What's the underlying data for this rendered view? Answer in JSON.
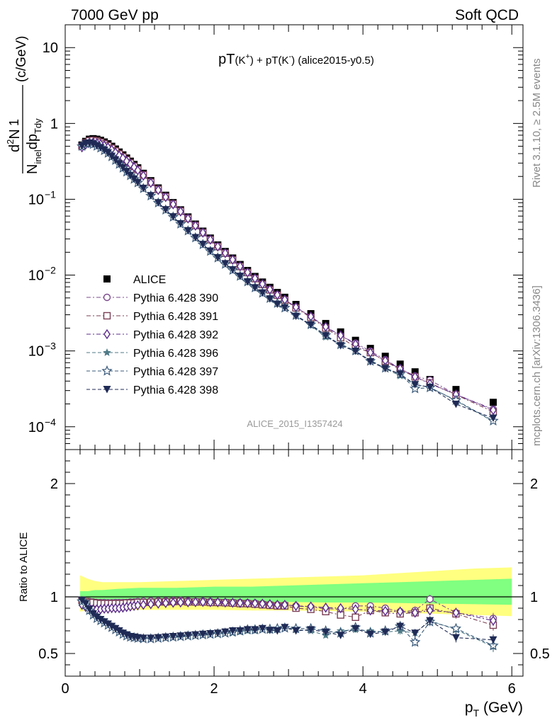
{
  "header": {
    "left": "7000 GeV pp",
    "right": "Soft QCD"
  },
  "side_labels": {
    "rivet": "Rivet 3.1.10, ≥ 2.5M events",
    "mcplots": "mcplots.cern.ch [arXiv:1306.3436]"
  },
  "watermark": "ALICE_2015_I1357424",
  "colors": {
    "ALICE": "#000000",
    "p390": "#7b4a8c",
    "p391": "#7b3f55",
    "p392": "#5b2c8a",
    "p396": "#4f7a86",
    "p397": "#3a5a7a",
    "p398": "#1f2a55",
    "band_outer": "#ffff80",
    "band_inner": "#80ff80"
  },
  "chart_data": [
    {
      "type": "scatter",
      "title_main": "pT",
      "title_sub1": "(K",
      "title_sup1": "+",
      "title_sub2": ") + pT(K",
      "title_sup2": "-",
      "title_sub3": ") (alice2015-y0.5)",
      "ylabel_parts": {
        "one": "1",
        "num": "d",
        "num_sup": "2",
        "num_tail": "N",
        "den": "N",
        "den_sub": "inel",
        "den_mid": "dp",
        "den_sub2": "Tdy",
        "unit": "(c/GeV)"
      },
      "yscale": "log",
      "xlim": [
        0,
        6.15
      ],
      "ylim": [
        5e-05,
        20
      ],
      "y_ticks": [
        {
          "value": 10,
          "mant": "10",
          "exp": ""
        },
        {
          "value": 1,
          "mant": "1",
          "exp": ""
        },
        {
          "value": 0.1,
          "mant": "10",
          "exp": "−1"
        },
        {
          "value": 0.01,
          "mant": "10",
          "exp": "−2"
        },
        {
          "value": 0.001,
          "mant": "10",
          "exp": "−3"
        },
        {
          "value": 0.0001,
          "mant": "10",
          "exp": "−4"
        }
      ],
      "legend_placement": "middle-left",
      "x": [
        0.225,
        0.275,
        0.325,
        0.375,
        0.425,
        0.475,
        0.525,
        0.575,
        0.625,
        0.675,
        0.725,
        0.775,
        0.825,
        0.875,
        0.925,
        0.975,
        1.05,
        1.15,
        1.25,
        1.35,
        1.45,
        1.55,
        1.65,
        1.75,
        1.85,
        1.95,
        2.05,
        2.15,
        2.25,
        2.35,
        2.45,
        2.55,
        2.65,
        2.75,
        2.85,
        2.95,
        3.1,
        3.3,
        3.5,
        3.7,
        3.9,
        4.1,
        4.3,
        4.5,
        4.7,
        4.9,
        5.25,
        5.75
      ],
      "series": [
        {
          "name": "ALICE",
          "key": "ALICE",
          "marker": "square-filled",
          "values": [
            0.52,
            0.58,
            0.62,
            0.63,
            0.62,
            0.6,
            0.57,
            0.54,
            0.5,
            0.46,
            0.42,
            0.385,
            0.35,
            0.318,
            0.288,
            0.26,
            0.22,
            0.176,
            0.141,
            0.113,
            0.0905,
            0.0726,
            0.0585,
            0.0471,
            0.038,
            0.0308,
            0.025,
            0.0205,
            0.0168,
            0.0138,
            0.0115,
            0.0096,
            0.0081,
            0.0069,
            0.0059,
            0.0051,
            0.0041,
            0.0031,
            0.0023,
            0.00178,
            0.00138,
            0.00108,
            0.00085,
            0.00067,
            0.00053,
            0.00042,
            0.00031,
            0.00021
          ]
        },
        {
          "name": "Pythia 6.428 390",
          "key": "p390",
          "marker": "circle-open",
          "ratio": [
            0.97,
            0.96,
            0.96,
            0.955,
            0.95,
            0.95,
            0.95,
            0.948,
            0.948,
            0.95,
            0.95,
            0.95,
            0.95,
            0.955,
            0.955,
            0.96,
            0.962,
            0.965,
            0.965,
            0.965,
            0.968,
            0.97,
            0.965,
            0.96,
            0.962,
            0.96,
            0.955,
            0.953,
            0.95,
            0.95,
            0.948,
            0.945,
            0.94,
            0.935,
            0.93,
            0.93,
            0.92,
            0.91,
            0.895,
            0.89,
            0.92,
            0.92,
            0.9,
            0.87,
            0.88,
            0.98,
            0.86,
            0.81
          ]
        },
        {
          "name": "Pythia 6.428 391",
          "key": "p391",
          "marker": "square-open",
          "ratio": [
            0.97,
            0.96,
            0.95,
            0.95,
            0.945,
            0.94,
            0.94,
            0.94,
            0.94,
            0.94,
            0.94,
            0.94,
            0.945,
            0.945,
            0.945,
            0.95,
            0.95,
            0.952,
            0.955,
            0.955,
            0.958,
            0.96,
            0.955,
            0.955,
            0.955,
            0.95,
            0.95,
            0.948,
            0.945,
            0.94,
            0.94,
            0.935,
            0.93,
            0.925,
            0.92,
            0.92,
            0.9,
            0.89,
            0.87,
            0.84,
            0.82,
            0.88,
            0.86,
            0.85,
            0.86,
            0.9,
            0.85,
            0.75
          ]
        },
        {
          "name": "Pythia 6.428 392",
          "key": "p392",
          "marker": "diamond-open",
          "ratio": [
            0.93,
            0.91,
            0.9,
            0.89,
            0.89,
            0.89,
            0.895,
            0.895,
            0.9,
            0.9,
            0.9,
            0.905,
            0.91,
            0.915,
            0.92,
            0.925,
            0.93,
            0.935,
            0.94,
            0.945,
            0.948,
            0.95,
            0.952,
            0.953,
            0.955,
            0.953,
            0.952,
            0.95,
            0.948,
            0.946,
            0.944,
            0.942,
            0.94,
            0.935,
            0.93,
            0.93,
            0.92,
            0.915,
            0.905,
            0.9,
            0.89,
            0.88,
            0.875,
            0.87,
            0.86,
            0.88,
            0.86,
            0.79
          ]
        },
        {
          "name": "Pythia 6.428 396",
          "key": "p396",
          "marker": "star-filled",
          "ratio": [
            0.97,
            0.93,
            0.88,
            0.84,
            0.81,
            0.79,
            0.77,
            0.75,
            0.73,
            0.71,
            0.69,
            0.67,
            0.655,
            0.645,
            0.64,
            0.635,
            0.63,
            0.63,
            0.635,
            0.64,
            0.64,
            0.645,
            0.65,
            0.655,
            0.66,
            0.665,
            0.67,
            0.675,
            0.68,
            0.69,
            0.7,
            0.7,
            0.71,
            0.705,
            0.71,
            0.72,
            0.71,
            0.7,
            0.66,
            0.7,
            0.71,
            0.7,
            0.69,
            0.7,
            0.68,
            0.79,
            0.71,
            0.56
          ]
        },
        {
          "name": "Pythia 6.428 397",
          "key": "p397",
          "marker": "star-open",
          "ratio": [
            0.96,
            0.93,
            0.88,
            0.84,
            0.81,
            0.79,
            0.77,
            0.75,
            0.73,
            0.71,
            0.69,
            0.67,
            0.655,
            0.645,
            0.64,
            0.635,
            0.63,
            0.63,
            0.635,
            0.64,
            0.645,
            0.65,
            0.655,
            0.66,
            0.665,
            0.67,
            0.675,
            0.68,
            0.69,
            0.7,
            0.71,
            0.71,
            0.715,
            0.715,
            0.72,
            0.725,
            0.72,
            0.72,
            0.7,
            0.68,
            0.73,
            0.68,
            0.7,
            0.74,
            0.6,
            0.78,
            0.72,
            0.57
          ]
        },
        {
          "name": "Pythia 6.428 398",
          "key": "p398",
          "marker": "triangle-down-filled",
          "ratio": [
            0.97,
            0.94,
            0.89,
            0.85,
            0.82,
            0.8,
            0.78,
            0.76,
            0.74,
            0.72,
            0.7,
            0.68,
            0.665,
            0.65,
            0.645,
            0.64,
            0.635,
            0.635,
            0.64,
            0.645,
            0.65,
            0.655,
            0.66,
            0.665,
            0.67,
            0.675,
            0.68,
            0.69,
            0.7,
            0.7,
            0.71,
            0.71,
            0.72,
            0.705,
            0.7,
            0.73,
            0.7,
            0.71,
            0.69,
            0.66,
            0.72,
            0.67,
            0.69,
            0.74,
            0.68,
            0.79,
            0.64,
            0.62
          ]
        }
      ]
    },
    {
      "type": "scatter",
      "ylabel": "Ratio to ALICE",
      "xlabel_main": "p",
      "xlabel_sub": "T",
      "xlabel_unit": " (GeV)",
      "xlim": [
        0,
        6.15
      ],
      "ylim": [
        0.3,
        2.3
      ],
      "x_ticks": [
        0,
        2,
        4,
        6
      ],
      "x_tick_labels": [
        "0",
        "2",
        "4",
        "6"
      ],
      "y_ticks": [
        0.5,
        1,
        2
      ],
      "y_tick_labels": [
        "0.5",
        "1",
        "2"
      ],
      "reference_line": 1,
      "band_x": [
        0.2,
        0.3,
        0.4,
        0.5,
        0.7,
        1.0,
        1.5,
        2.0,
        2.5,
        3.0,
        3.5,
        4.0,
        4.5,
        5.0,
        5.5,
        6.0
      ],
      "band_outer_lo": [
        0.87,
        0.88,
        0.88,
        0.885,
        0.885,
        0.885,
        0.885,
        0.885,
        0.88,
        0.88,
        0.875,
        0.87,
        0.86,
        0.85,
        0.84,
        0.83
      ],
      "band_outer_hi": [
        1.19,
        1.16,
        1.14,
        1.13,
        1.13,
        1.13,
        1.14,
        1.15,
        1.16,
        1.17,
        1.18,
        1.19,
        1.21,
        1.23,
        1.25,
        1.26
      ],
      "band_inner_lo": [
        0.95,
        0.95,
        0.955,
        0.955,
        0.955,
        0.955,
        0.955,
        0.955,
        0.955,
        0.955,
        0.95,
        0.95,
        0.945,
        0.94,
        0.935,
        0.93
      ],
      "band_inner_hi": [
        1.05,
        1.05,
        1.06,
        1.06,
        1.07,
        1.08,
        1.08,
        1.09,
        1.09,
        1.1,
        1.11,
        1.12,
        1.13,
        1.14,
        1.15,
        1.16
      ]
    }
  ]
}
